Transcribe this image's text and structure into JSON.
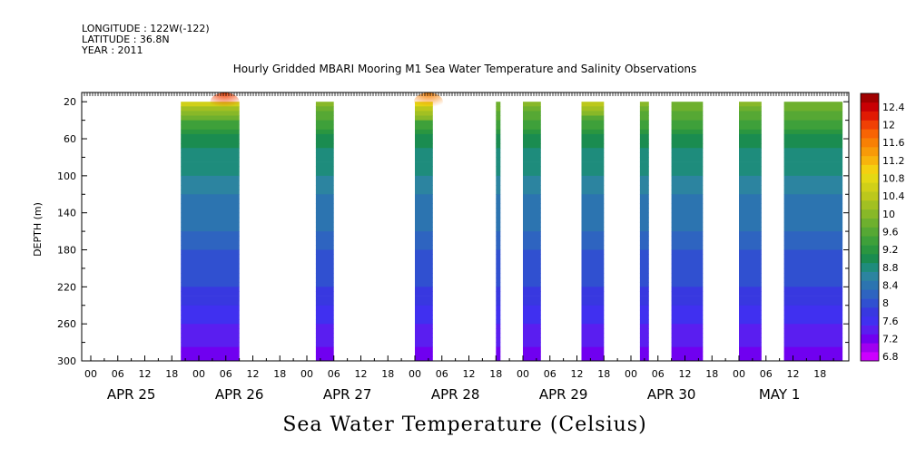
{
  "header": {
    "longitude": "LONGITUDE : 122W(-122)",
    "latitude": "LATITUDE : 36.8N",
    "year": "YEAR : 2011"
  },
  "chart_data": {
    "type": "heatmap",
    "title": "Hourly Gridded MBARI Mooring M1 Sea Water Temperature and Salinity Observations",
    "xlabel": "Sea Water Temperature (Celsius)",
    "ylabel": "DEPTH (m)",
    "ylim": [
      300,
      10
    ],
    "y_ticks": [
      20,
      60,
      100,
      140,
      180,
      220,
      260,
      300
    ],
    "x_start": "2011-04-25T00:00",
    "x_end": "2011-05-01T23:00",
    "x_hour_ticks": [
      "00",
      "06",
      "12",
      "18",
      "00",
      "06",
      "12",
      "18",
      "00",
      "06",
      "12",
      "18",
      "00",
      "06",
      "12",
      "18",
      "00",
      "06",
      "12",
      "18",
      "00",
      "06",
      "12",
      "18",
      "00",
      "06",
      "12",
      "18"
    ],
    "x_day_labels": [
      "APR 25",
      "APR 26",
      "APR 27",
      "APR 28",
      "APR 29",
      "APR 30",
      "MAY  1"
    ],
    "data_windows": [
      {
        "start": "2011-04-25T20:00",
        "end": "2011-04-26T09:00",
        "surface": 10.6,
        "warm_spot": 12.0
      },
      {
        "start": "2011-04-27T02:00",
        "end": "2011-04-27T06:00",
        "surface": 10.0
      },
      {
        "start": "2011-04-28T00:00",
        "end": "2011-04-28T04:00",
        "surface": 10.8,
        "warm_spot": 11.6
      },
      {
        "start": "2011-04-28T18:00",
        "end": "2011-04-28T19:00",
        "surface": 8.6
      },
      {
        "start": "2011-04-29T00:00",
        "end": "2011-04-29T04:00",
        "surface": 10.0
      },
      {
        "start": "2011-04-29T13:00",
        "end": "2011-04-29T18:00",
        "surface": 10.5
      },
      {
        "start": "2011-04-30T02:00",
        "end": "2011-04-30T04:00",
        "surface": 10.0
      },
      {
        "start": "2011-04-30T09:00",
        "end": "2011-04-30T16:00",
        "surface": 9.8
      },
      {
        "start": "2011-05-01T00:00",
        "end": "2011-05-01T05:00",
        "surface": 10.0
      },
      {
        "start": "2011-05-01T10:00",
        "end": "2011-05-01T23:00",
        "surface": 9.8
      }
    ],
    "profile": [
      {
        "depth": 20,
        "temp": 10.0
      },
      {
        "depth": 40,
        "temp": 9.6
      },
      {
        "depth": 60,
        "temp": 9.1
      },
      {
        "depth": 80,
        "temp": 8.9
      },
      {
        "depth": 100,
        "temp": 8.8
      },
      {
        "depth": 120,
        "temp": 8.6
      },
      {
        "depth": 140,
        "temp": 8.5
      },
      {
        "depth": 160,
        "temp": 8.4
      },
      {
        "depth": 180,
        "temp": 8.2
      },
      {
        "depth": 200,
        "temp": 8.1
      },
      {
        "depth": 220,
        "temp": 8.0
      },
      {
        "depth": 240,
        "temp": 7.8
      },
      {
        "depth": 260,
        "temp": 7.6
      },
      {
        "depth": 280,
        "temp": 7.45
      },
      {
        "depth": 300,
        "temp": 7.3
      }
    ],
    "colorbar": {
      "levels": [
        6.8,
        7.0,
        7.2,
        7.4,
        7.6,
        7.8,
        8.0,
        8.2,
        8.4,
        8.6,
        8.8,
        9.0,
        9.2,
        9.4,
        9.6,
        9.8,
        10.0,
        10.2,
        10.4,
        10.6,
        10.8,
        11.0,
        11.2,
        11.4,
        11.6,
        11.8,
        12.0,
        12.2,
        12.4,
        12.6
      ],
      "labels": [
        "6.8",
        "7.2",
        "7.6",
        "8",
        "8.4",
        "8.8",
        "9.2",
        "9.6",
        "10",
        "10.4",
        "10.8",
        "11.2",
        "11.6",
        "12",
        "12.4"
      ],
      "colors": [
        "#cc00ff",
        "#a000f0",
        "#7000f0",
        "#5a1ef0",
        "#4030f0",
        "#3838e0",
        "#3050d0",
        "#2e64c0",
        "#2c74b0",
        "#2c84a0",
        "#1e8c7c",
        "#1a8c50",
        "#2a9640",
        "#3ea03a",
        "#56a834",
        "#6eb02e",
        "#88b828",
        "#a2c022",
        "#bcc81c",
        "#d0d018",
        "#e4d814",
        "#f4d010",
        "#f8b40c",
        "#f89a08",
        "#f88004",
        "#f86404",
        "#f04004",
        "#e01a04",
        "#c80004",
        "#a00000"
      ]
    }
  }
}
